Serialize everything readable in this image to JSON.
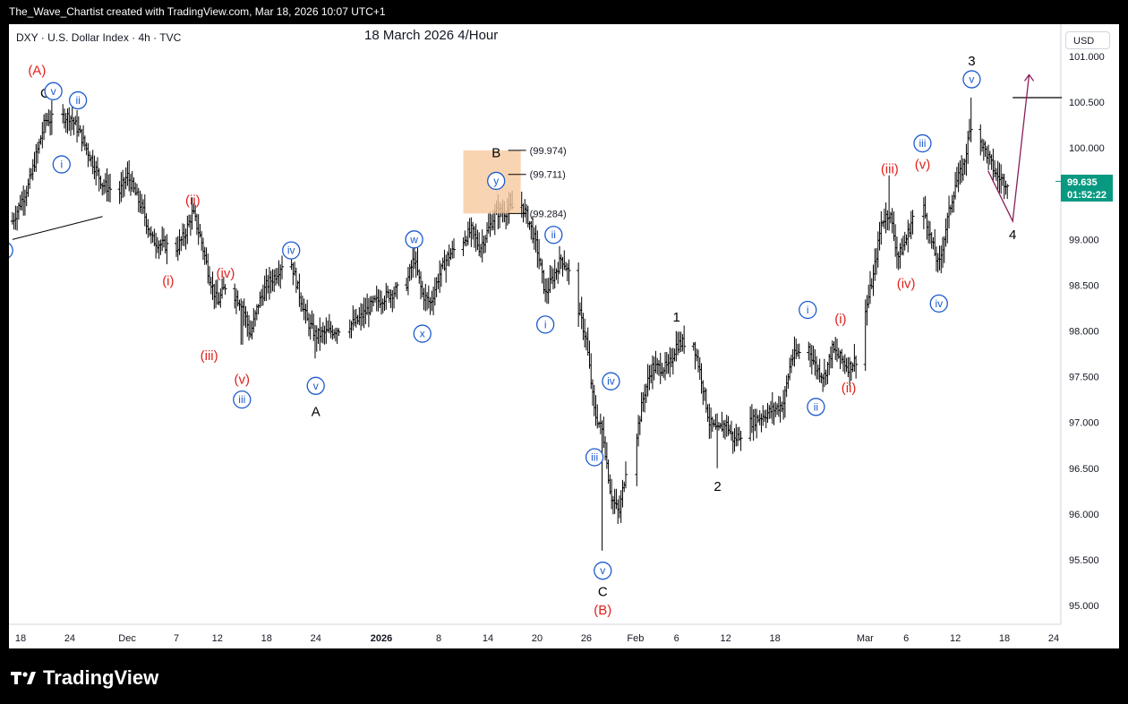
{
  "header": {
    "credit": "The_Wave_Chartist created with TradingView.com, Mar 18, 2026 10:07 UTC+1"
  },
  "brand": {
    "name": "TradingView",
    "color": "#ffffff"
  },
  "chart_data": {
    "type": "candlestick",
    "symbol": "DXY · U.S. Dollar Index · 4h · TVC",
    "title": "18 March 2026 4/Hour",
    "currency": "USD",
    "last_price": "99.635",
    "countdown": "01:52:22",
    "last_price_color": "#089981",
    "ylim": [
      94.8,
      101.3
    ],
    "y_ticks": [
      "101.000",
      "100.500",
      "100.000",
      "99.500",
      "99.000",
      "98.500",
      "98.000",
      "97.500",
      "97.000",
      "96.500",
      "96.000",
      "95.500",
      "95.000"
    ],
    "x_ticks": [
      "18",
      "24",
      "Dec",
      "7",
      "12",
      "18",
      "24",
      "2026",
      "8",
      "14",
      "20",
      "26",
      "Feb",
      "6",
      "12",
      "18",
      "Mar",
      "6",
      "12",
      "18",
      "24"
    ],
    "x_tick_dates": [
      "2025-11-18",
      "2025-11-24",
      "2025-12-01",
      "2025-12-07",
      "2025-12-12",
      "2025-12-18",
      "2025-12-24",
      "2026-01-01",
      "2026-01-08",
      "2026-01-14",
      "2026-01-20",
      "2026-01-26",
      "2026-02-01",
      "2026-02-06",
      "2026-02-12",
      "2026-02-18",
      "2026-03-01",
      "2026-03-06",
      "2026-03-12",
      "2026-03-18",
      "2026-03-24"
    ],
    "path_points": [
      [
        "2025-11-17",
        99.2
      ],
      [
        "2025-11-19",
        99.6
      ],
      [
        "2025-11-21",
        100.3
      ],
      [
        "2025-11-24",
        100.35
      ],
      [
        "2025-11-25",
        100.2
      ],
      [
        "2025-11-26",
        100.0
      ],
      [
        "2025-11-27",
        99.8
      ],
      [
        "2025-11-28",
        99.6
      ],
      [
        "2025-11-30",
        99.5
      ],
      [
        "2025-12-01",
        99.7
      ],
      [
        "2025-12-02",
        99.5
      ],
      [
        "2025-12-03",
        99.3
      ],
      [
        "2025-12-04",
        99.0
      ],
      [
        "2025-12-05",
        98.95
      ],
      [
        "2025-12-07",
        98.9
      ],
      [
        "2025-12-08",
        99.05
      ],
      [
        "2025-12-09",
        99.3
      ],
      [
        "2025-12-10",
        99.0
      ],
      [
        "2025-12-11",
        98.6
      ],
      [
        "2025-12-12",
        98.3
      ],
      [
        "2025-12-13",
        98.5
      ],
      [
        "2025-12-15",
        98.3
      ],
      [
        "2025-12-16",
        97.95
      ],
      [
        "2025-12-17",
        98.3
      ],
      [
        "2025-12-18",
        98.5
      ],
      [
        "2025-12-19",
        98.6
      ],
      [
        "2025-12-20",
        98.75
      ],
      [
        "2025-12-21",
        98.75
      ],
      [
        "2025-12-22",
        98.4
      ],
      [
        "2025-12-23",
        98.1
      ],
      [
        "2025-12-24",
        97.95
      ],
      [
        "2025-12-26",
        98.0
      ],
      [
        "2025-12-29",
        98.1
      ],
      [
        "2025-12-31",
        98.3
      ],
      [
        "2026-01-02",
        98.4
      ],
      [
        "2026-01-04",
        98.5
      ],
      [
        "2026-01-05",
        98.8
      ],
      [
        "2026-01-06",
        98.4
      ],
      [
        "2026-01-07",
        98.3
      ],
      [
        "2026-01-08",
        98.6
      ],
      [
        "2026-01-09",
        98.8
      ],
      [
        "2026-01-12",
        99.1
      ],
      [
        "2026-01-13",
        98.9
      ],
      [
        "2026-01-14",
        99.1
      ],
      [
        "2026-01-15",
        99.3
      ],
      [
        "2026-01-16",
        99.3
      ],
      [
        "2026-01-18",
        99.4
      ],
      [
        "2026-01-19",
        99.2
      ],
      [
        "2026-01-20",
        98.9
      ],
      [
        "2026-01-21",
        98.4
      ],
      [
        "2026-01-22",
        98.6
      ],
      [
        "2026-01-23",
        98.8
      ],
      [
        "2026-01-24",
        98.6
      ],
      [
        "2026-01-26",
        97.9
      ],
      [
        "2026-01-27",
        97.1
      ],
      [
        "2026-01-28",
        96.9
      ],
      [
        "2026-01-29",
        96.2
      ],
      [
        "2026-01-30",
        96.0
      ],
      [
        "2026-01-31",
        96.6
      ],
      [
        "2026-02-01",
        96.8
      ],
      [
        "2026-02-02",
        97.3
      ],
      [
        "2026-02-03",
        97.6
      ],
      [
        "2026-02-05",
        97.6
      ],
      [
        "2026-02-06",
        97.85
      ],
      [
        "2026-02-08",
        97.9
      ],
      [
        "2026-02-09",
        97.5
      ],
      [
        "2026-02-10",
        97.0
      ],
      [
        "2026-02-11",
        96.9
      ],
      [
        "2026-02-12",
        97.0
      ],
      [
        "2026-02-13",
        96.8
      ],
      [
        "2026-02-15",
        97.0
      ],
      [
        "2026-02-17",
        97.1
      ],
      [
        "2026-02-19",
        97.2
      ],
      [
        "2026-02-20",
        97.7
      ],
      [
        "2026-02-22",
        97.85
      ],
      [
        "2026-02-23",
        97.6
      ],
      [
        "2026-02-24",
        97.5
      ],
      [
        "2026-02-25",
        97.8
      ],
      [
        "2026-02-26",
        97.7
      ],
      [
        "2026-02-27",
        97.6
      ],
      [
        "2026-02-28",
        97.7
      ],
      [
        "2026-03-01",
        98.2
      ],
      [
        "2026-03-02",
        98.6
      ],
      [
        "2026-03-03",
        99.2
      ],
      [
        "2026-03-04",
        99.3
      ],
      [
        "2026-03-05",
        98.8
      ],
      [
        "2026-03-06",
        99.0
      ],
      [
        "2026-03-07",
        99.3
      ],
      [
        "2026-03-08",
        99.4
      ],
      [
        "2026-03-09",
        99.0
      ],
      [
        "2026-03-10",
        98.7
      ],
      [
        "2026-03-11",
        99.2
      ],
      [
        "2026-03-12",
        99.6
      ],
      [
        "2026-03-13",
        99.8
      ],
      [
        "2026-03-14",
        100.3
      ],
      [
        "2026-03-15",
        100.1
      ],
      [
        "2026-03-16",
        99.9
      ],
      [
        "2026-03-17",
        99.7
      ],
      [
        "2026-03-18",
        99.63
      ]
    ],
    "extremes": [
      [
        "2025-11-22",
        100.4,
        "high"
      ],
      [
        "2025-12-15",
        97.85,
        "low"
      ],
      [
        "2025-12-24",
        97.7,
        "low"
      ],
      [
        "2026-01-17",
        99.5,
        "high"
      ],
      [
        "2026-01-28",
        95.6,
        "low"
      ],
      [
        "2026-02-06",
        98.0,
        "high"
      ],
      [
        "2026-02-11",
        96.5,
        "low"
      ],
      [
        "2026-03-04",
        99.7,
        "high"
      ],
      [
        "2026-03-14",
        100.55,
        "high"
      ]
    ],
    "fib_box": {
      "x_start": "2026-01-11",
      "x_end": "2026-01-18",
      "y_top": 99.974,
      "y_bottom": 99.284,
      "color": "#f7c9a0"
    },
    "levels": [
      {
        "label": "(99.974)",
        "value": 99.974
      },
      {
        "label": "(99.711)",
        "value": 99.711
      },
      {
        "label": "(99.284)",
        "value": 99.284
      }
    ],
    "projection": {
      "from": [
        "2026-03-19",
        99.2
      ],
      "to": [
        "2026-03-21",
        100.8
      ],
      "color": "#8b1e5c"
    },
    "trend_line": {
      "from": [
        "2025-11-17",
        99.0
      ],
      "to": [
        "2025-11-28",
        99.25
      ]
    },
    "right_hline": {
      "x_start": "2026-03-19",
      "x_end": "2026-03-25",
      "value": 100.55
    },
    "wave_labels": [
      {
        "text": "(A)",
        "x": "2025-11-20",
        "y": 100.85,
        "color": "#e0201c",
        "circled": false
      },
      {
        "text": "C",
        "x": "2025-11-21",
        "y": 100.6,
        "color": "#000000",
        "circled": false
      },
      {
        "text": "v",
        "x": "2025-11-22",
        "y": 100.62,
        "color": "#1e5bcc",
        "circled": true
      },
      {
        "text": "ii",
        "x": "2025-11-25",
        "y": 100.52,
        "color": "#1e5bcc",
        "circled": true
      },
      {
        "text": "i",
        "x": "2025-11-23",
        "y": 99.82,
        "color": "#1e5bcc",
        "circled": true
      },
      {
        "text": "v",
        "x": "2025-11-16",
        "y": 98.88,
        "color": "#1e5bcc",
        "circled": true
      },
      {
        "text": "(ii)",
        "x": "2025-12-09",
        "y": 99.43,
        "color": "#e0201c",
        "circled": false
      },
      {
        "text": "(i)",
        "x": "2025-12-06",
        "y": 98.55,
        "color": "#e0201c",
        "circled": false
      },
      {
        "text": "(iv)",
        "x": "2025-12-13",
        "y": 98.63,
        "color": "#e0201c",
        "circled": false
      },
      {
        "text": "(iii)",
        "x": "2025-12-11",
        "y": 97.73,
        "color": "#e0201c",
        "circled": false
      },
      {
        "text": "(v)",
        "x": "2025-12-15",
        "y": 97.47,
        "color": "#e0201c",
        "circled": false
      },
      {
        "text": "iii",
        "x": "2025-12-15",
        "y": 97.25,
        "color": "#1e5bcc",
        "circled": true
      },
      {
        "text": "iv",
        "x": "2025-12-21",
        "y": 98.88,
        "color": "#1e5bcc",
        "circled": true
      },
      {
        "text": "v",
        "x": "2025-12-24",
        "y": 97.4,
        "color": "#1e5bcc",
        "circled": true
      },
      {
        "text": "A",
        "x": "2025-12-24",
        "y": 97.12,
        "color": "#000000",
        "circled": false
      },
      {
        "text": "w",
        "x": "2026-01-05",
        "y": 99.0,
        "color": "#1e5bcc",
        "circled": true
      },
      {
        "text": "x",
        "x": "2026-01-06",
        "y": 97.97,
        "color": "#1e5bcc",
        "circled": true
      },
      {
        "text": "B",
        "x": "2026-01-15",
        "y": 99.95,
        "color": "#000000",
        "circled": false
      },
      {
        "text": "y",
        "x": "2026-01-15",
        "y": 99.64,
        "color": "#1e5bcc",
        "circled": true
      },
      {
        "text": "ii",
        "x": "2026-01-22",
        "y": 99.05,
        "color": "#1e5bcc",
        "circled": true
      },
      {
        "text": "i",
        "x": "2026-01-21",
        "y": 98.07,
        "color": "#1e5bcc",
        "circled": true
      },
      {
        "text": "iv",
        "x": "2026-01-29",
        "y": 97.45,
        "color": "#1e5bcc",
        "circled": true
      },
      {
        "text": "iii",
        "x": "2026-01-27",
        "y": 96.62,
        "color": "#1e5bcc",
        "circled": true
      },
      {
        "text": "v",
        "x": "2026-01-28",
        "y": 95.38,
        "color": "#1e5bcc",
        "circled": true
      },
      {
        "text": "C",
        "x": "2026-01-28",
        "y": 95.15,
        "color": "#000000",
        "circled": false
      },
      {
        "text": "(B)",
        "x": "2026-01-28",
        "y": 94.95,
        "color": "#e0201c",
        "circled": false
      },
      {
        "text": "1",
        "x": "2026-02-06",
        "y": 98.15,
        "color": "#000000",
        "circled": false
      },
      {
        "text": "2",
        "x": "2026-02-11",
        "y": 96.3,
        "color": "#000000",
        "circled": false
      },
      {
        "text": "i",
        "x": "2026-02-22",
        "y": 98.23,
        "color": "#1e5bcc",
        "circled": true
      },
      {
        "text": "ii",
        "x": "2026-02-23",
        "y": 97.17,
        "color": "#1e5bcc",
        "circled": true
      },
      {
        "text": "(i)",
        "x": "2026-02-26",
        "y": 98.13,
        "color": "#e0201c",
        "circled": false
      },
      {
        "text": "(ii)",
        "x": "2026-02-27",
        "y": 97.38,
        "color": "#e0201c",
        "circled": false
      },
      {
        "text": "(iii)",
        "x": "2026-03-04",
        "y": 99.77,
        "color": "#e0201c",
        "circled": false
      },
      {
        "text": "(iv)",
        "x": "2026-03-06",
        "y": 98.52,
        "color": "#e0201c",
        "circled": false
      },
      {
        "text": "(v)",
        "x": "2026-03-08",
        "y": 99.82,
        "color": "#e0201c",
        "circled": false
      },
      {
        "text": "iii",
        "x": "2026-03-08",
        "y": 100.05,
        "color": "#1e5bcc",
        "circled": true
      },
      {
        "text": "iv",
        "x": "2026-03-10",
        "y": 98.3,
        "color": "#1e5bcc",
        "circled": true
      },
      {
        "text": "3",
        "x": "2026-03-14",
        "y": 100.95,
        "color": "#000000",
        "circled": false
      },
      {
        "text": "v",
        "x": "2026-03-14",
        "y": 100.75,
        "color": "#1e5bcc",
        "circled": true
      },
      {
        "text": "4",
        "x": "2026-03-19",
        "y": 99.05,
        "color": "#000000",
        "circled": false
      }
    ]
  }
}
